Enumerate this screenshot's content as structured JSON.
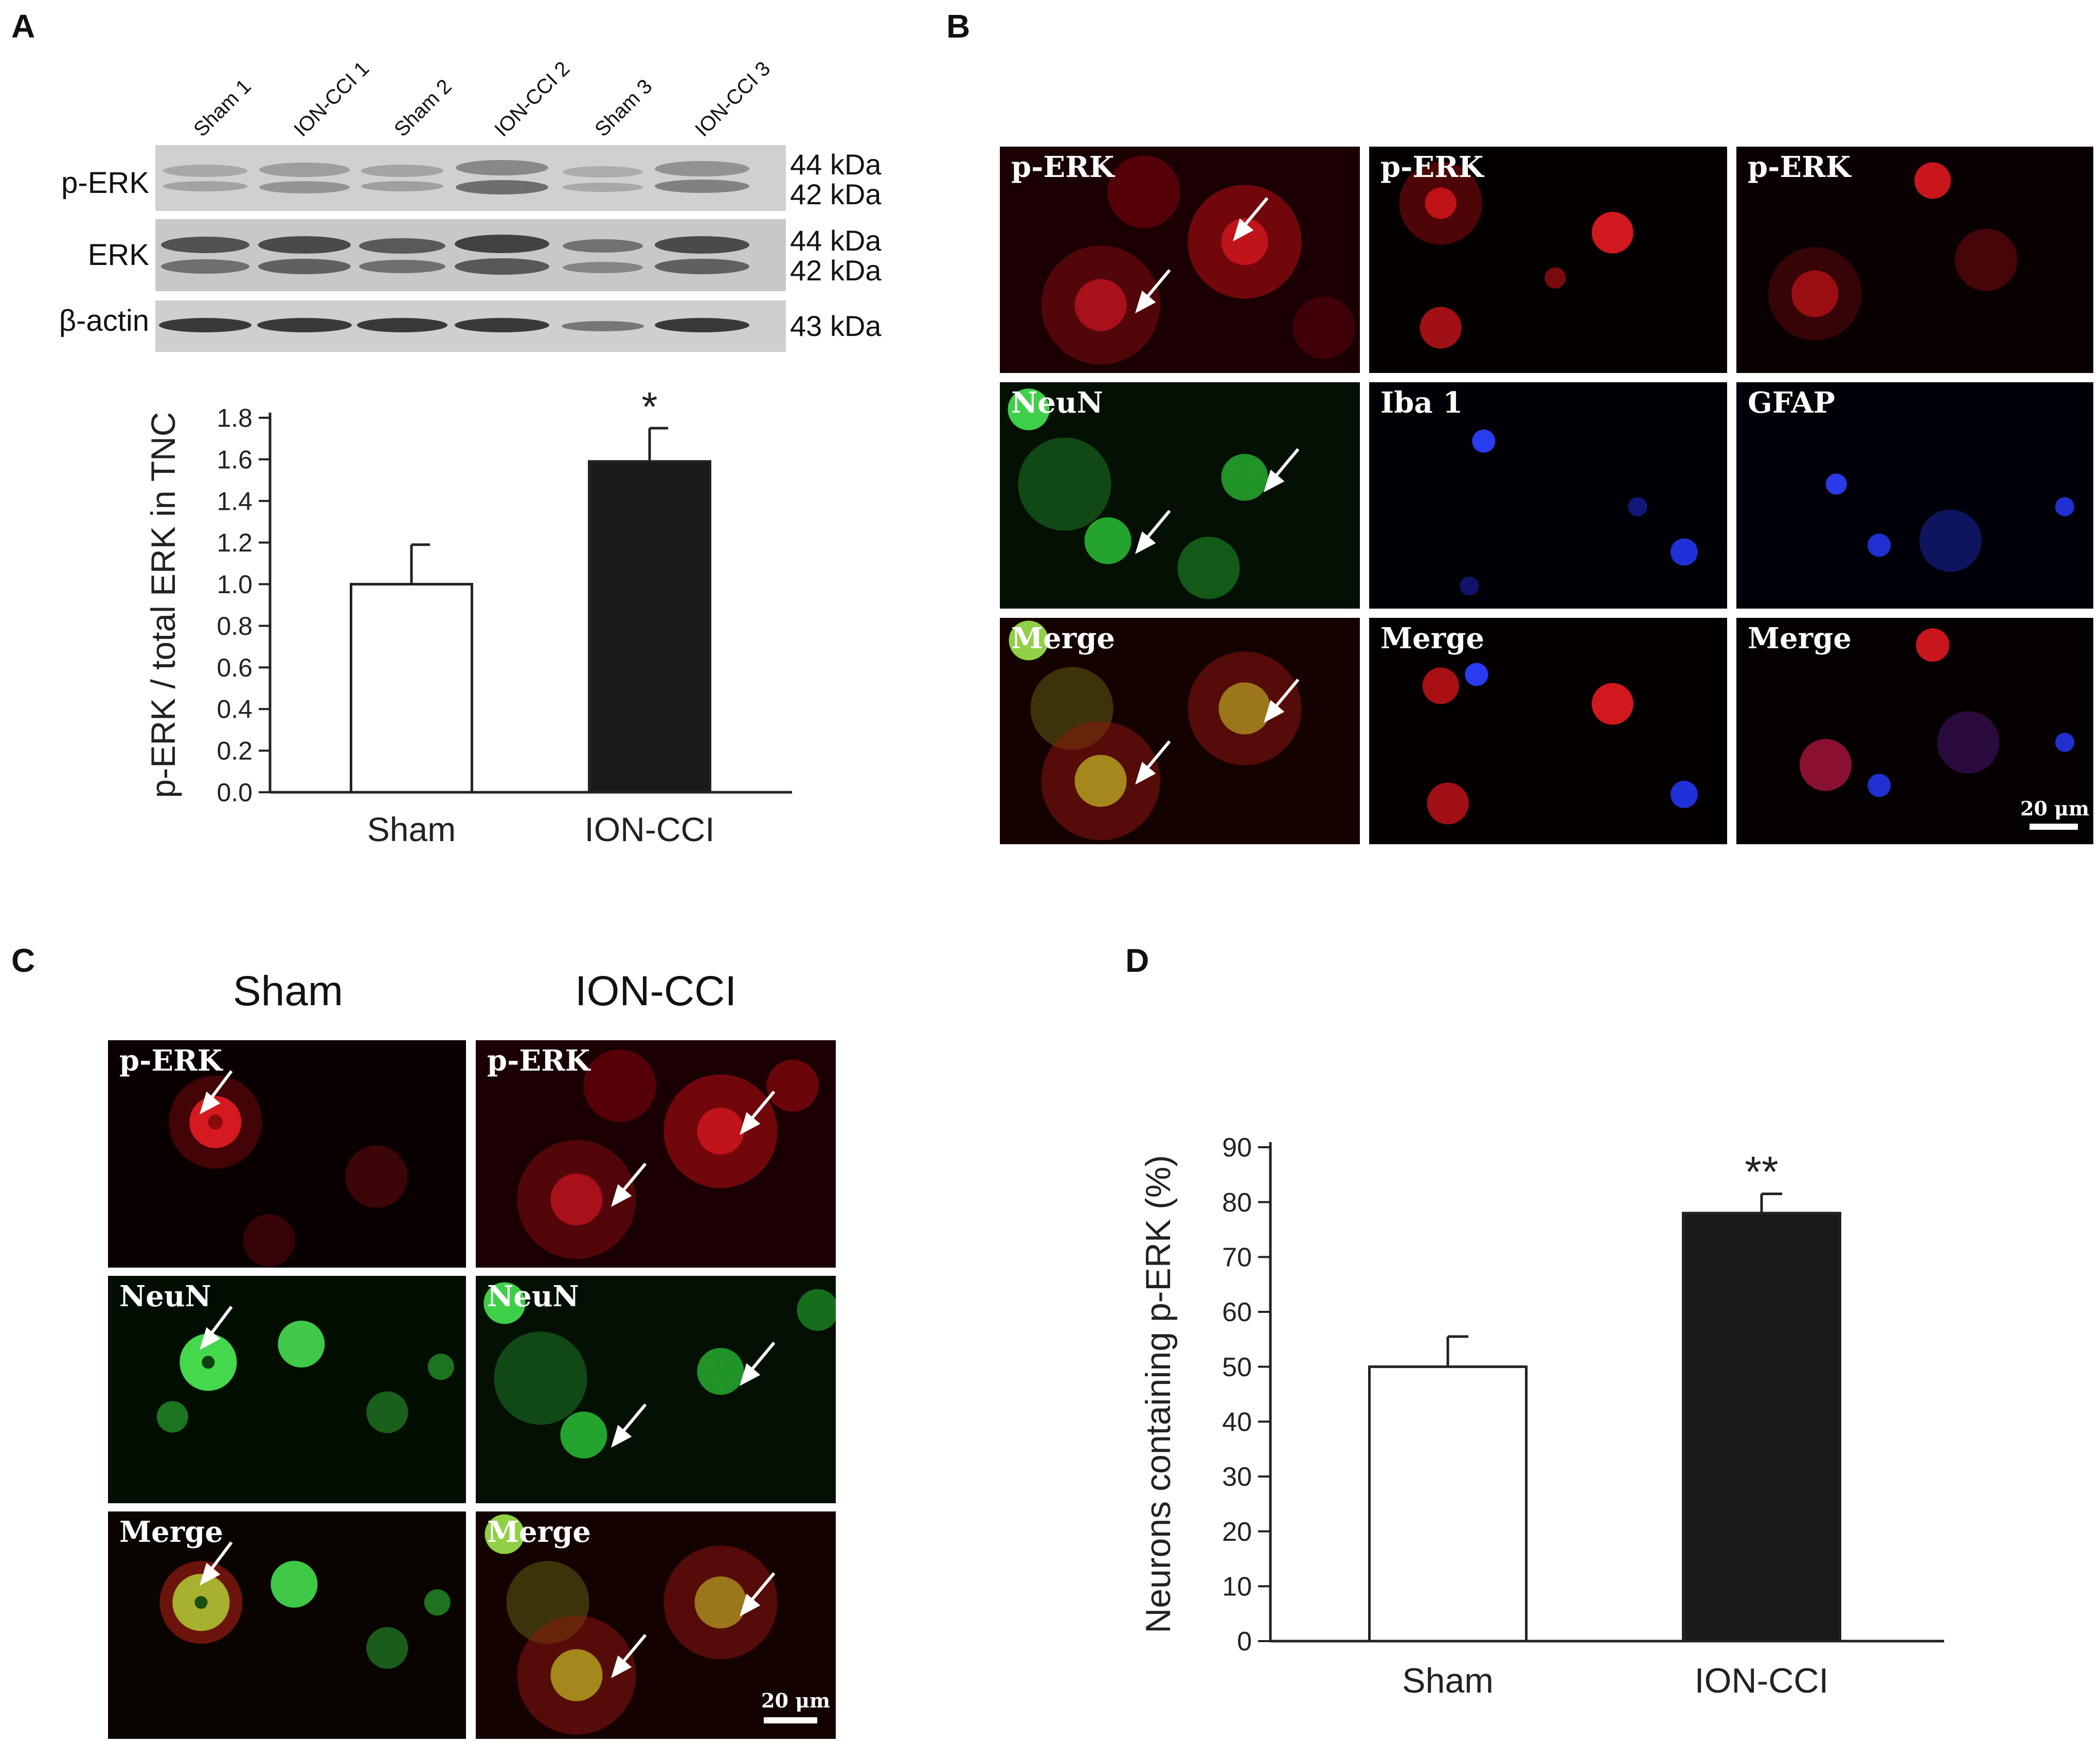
{
  "panels": {
    "A": "A",
    "B": "B",
    "C": "C",
    "D": "D"
  },
  "blot": {
    "lanes": [
      "Sham 1",
      "ION-CCI 1",
      "Sham 2",
      "ION-CCI 2",
      "Sham 3",
      "ION-CCI 3"
    ],
    "rows": [
      {
        "label": "p-ERK",
        "kda": [
          "44 kDa",
          "42 kDa"
        ]
      },
      {
        "label": "ERK",
        "kda": [
          "44 kDa",
          "42 kDa"
        ]
      },
      {
        "label": "β-actin",
        "kda": [
          "43 kDa"
        ]
      }
    ]
  },
  "micrographs_b": {
    "rows": [
      [
        "p-ERK",
        "p-ERK",
        "p-ERK"
      ],
      [
        "NeuN",
        "Iba 1",
        "GFAP"
      ],
      [
        "Merge",
        "Merge",
        "Merge"
      ]
    ],
    "scale_bar": "20 μm"
  },
  "micrographs_c": {
    "columns": [
      "Sham",
      "ION-CCI"
    ],
    "rows": [
      [
        "p-ERK",
        "p-ERK"
      ],
      [
        "NeuN",
        "NeuN"
      ],
      [
        "Merge",
        "Merge"
      ]
    ],
    "scale_bar": "20 μm"
  },
  "chart_data": [
    {
      "type": "bar",
      "categories": [
        "Sham",
        "ION-CCI"
      ],
      "values": [
        1.0,
        1.59
      ],
      "errors": [
        0.19,
        0.16
      ],
      "significance": [
        "",
        "*"
      ],
      "ylabel": "p-ERK / total ERK in TNC",
      "xlabel": "",
      "ylim": [
        0,
        1.8
      ],
      "yticks": [
        0.0,
        0.2,
        0.4,
        0.6,
        0.8,
        1.0,
        1.2,
        1.4,
        1.6,
        1.8
      ],
      "ytick_labels": [
        "0.0",
        "0.2",
        "0.4",
        "0.6",
        "0.8",
        "1.0",
        "1.2",
        "1.4",
        "1.6",
        "1.8"
      ],
      "bar_colors": [
        "#ffffff",
        "#1a1a1a"
      ],
      "grid": false
    },
    {
      "type": "bar",
      "categories": [
        "Sham",
        "ION-CCI"
      ],
      "values": [
        50,
        78
      ],
      "errors": [
        5.5,
        3.5
      ],
      "significance": [
        "",
        "**"
      ],
      "ylabel": "Neurons containing p-ERK (%)",
      "xlabel": "",
      "ylim": [
        0,
        90
      ],
      "yticks": [
        0,
        10,
        20,
        30,
        40,
        50,
        60,
        70,
        80,
        90
      ],
      "ytick_labels": [
        "0",
        "10",
        "20",
        "30",
        "40",
        "50",
        "60",
        "70",
        "80",
        "90"
      ],
      "bar_colors": [
        "#ffffff",
        "#1a1a1a"
      ],
      "grid": false
    }
  ]
}
